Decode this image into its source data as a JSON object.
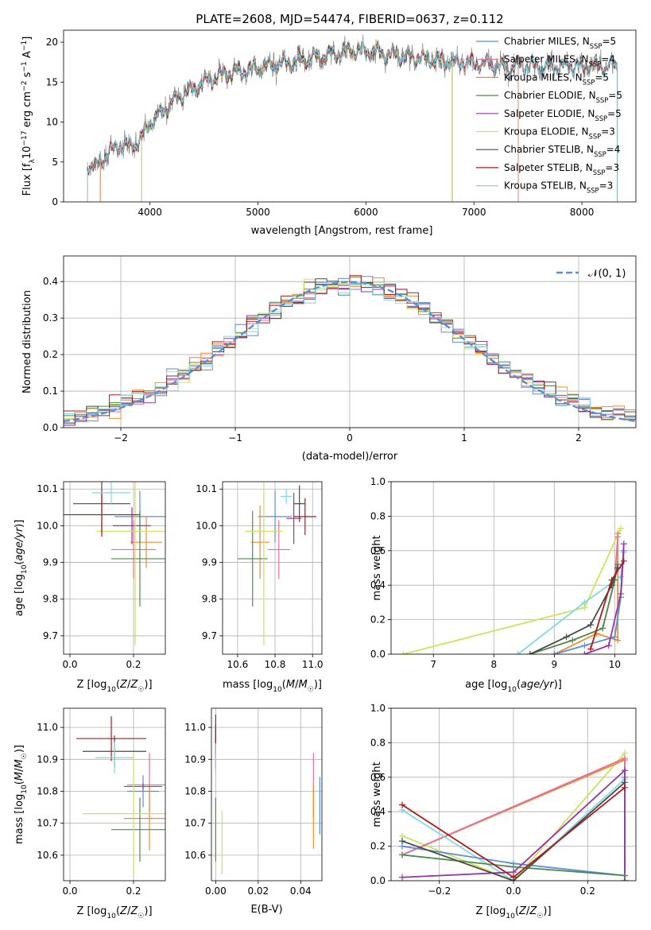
{
  "figure": {
    "title": "PLATE=2608, MJD=54474, FIBERID=0637, z=0.112"
  },
  "chart_data": [
    {
      "id": "spectrum",
      "type": "line",
      "title": "PLATE=2608, MJD=54474, FIBERID=0637, z=0.112",
      "xlabel": "wavelength [Angstrom, rest frame]",
      "ylabel": "Flux [f_λ10^-17 erg cm^-2 s^-1 A^-1]",
      "xlim": [
        3200,
        8500
      ],
      "ylim": [
        0,
        21.5
      ],
      "xticks": [
        "4000",
        "5000",
        "6000",
        "7000",
        "8000"
      ],
      "yticks": [
        "0",
        "5",
        "10",
        "15",
        "20"
      ],
      "grid": false,
      "legend_position": "right",
      "legend": [
        {
          "label": "Chabrier MILES, N",
          "sub": "SSP",
          "suffix": "=5",
          "color": "#5b8ed6"
        },
        {
          "label": "Salpeter MILES, N",
          "sub": "SSP",
          "suffix": "=4",
          "color": "#e56f9f"
        },
        {
          "label": "Kroupa MILES, N",
          "sub": "SSP",
          "suffix": "=5",
          "color": "#f08c2e"
        },
        {
          "label": "Chabrier ELODIE, N",
          "sub": "SSP",
          "suffix": "=5",
          "color": "#4e8a4e"
        },
        {
          "label": "Salpeter ELODIE, N",
          "sub": "SSP",
          "suffix": "=5",
          "color": "#9933aa"
        },
        {
          "label": "Kroupa ELODIE, N",
          "sub": "SSP",
          "suffix": "=3",
          "color": "#cce35a"
        },
        {
          "label": "Chabrier STELIB, N",
          "sub": "SSP",
          "suffix": "=4",
          "color": "#4a4a4a"
        },
        {
          "label": "Salpeter STELIB, N",
          "sub": "SSP",
          "suffix": "=3",
          "color": "#b01818"
        },
        {
          "label": "Kroupa STELIB, N",
          "sub": "SSP",
          "suffix": "=3",
          "color": "#7fd9e6"
        }
      ],
      "continuum_x": [
        3420,
        3500,
        3600,
        3700,
        3800,
        3900,
        4000,
        4100,
        4200,
        4300,
        4400,
        4500,
        4700,
        4900,
        5100,
        5300,
        5500,
        5700,
        5900,
        6100,
        6300,
        6500,
        6700,
        6900,
        7100,
        7300,
        7400
      ],
      "continuum_y": [
        4.8,
        4.2,
        6.0,
        7.0,
        7.0,
        7.5,
        10.0,
        11.0,
        12.5,
        13.5,
        14.0,
        15.0,
        16.0,
        16.5,
        17.0,
        17.5,
        18.0,
        18.5,
        19.0,
        18.7,
        18.3,
        18.0,
        17.7,
        17.5,
        17.3,
        16.8,
        17.0
      ],
      "series_range": [
        {
          "name": "Chabrier MILES, N_SSP=5",
          "x_start": 3540,
          "x_end": 7410
        },
        {
          "name": "Salpeter MILES, N_SSP=4",
          "x_start": 3540,
          "x_end": 7410
        },
        {
          "name": "Kroupa MILES, N_SSP=5",
          "x_start": 3540,
          "x_end": 7410
        },
        {
          "name": "Chabrier ELODIE, N_SSP=5",
          "x_start": 3920,
          "x_end": 6800
        },
        {
          "name": "Salpeter ELODIE, N_SSP=5",
          "x_start": 3920,
          "x_end": 6800
        },
        {
          "name": "Kroupa ELODIE, N_SSP=3",
          "x_start": 3920,
          "x_end": 6800
        },
        {
          "name": "Chabrier STELIB, N_SSP=4",
          "x_start": 3420,
          "x_end": 8330
        },
        {
          "name": "Salpeter STELIB, N_SSP=3",
          "x_start": 3420,
          "x_end": 8330
        },
        {
          "name": "Kroupa STELIB, N_SSP=3",
          "x_start": 3420,
          "x_end": 8330
        }
      ]
    },
    {
      "id": "residuals",
      "type": "line",
      "xlabel": "(data-model)/error",
      "ylabel": "Normed distribution",
      "xlim": [
        -2.5,
        2.5
      ],
      "ylim": [
        0,
        0.47
      ],
      "xticks": [
        "−2",
        "−1",
        "0",
        "1",
        "2"
      ],
      "yticks": [
        "0.0",
        "0.1",
        "0.2",
        "0.3",
        "0.4"
      ],
      "grid": true,
      "legend_position": "top-right",
      "legend": [
        {
          "label": "𝒩(0, 1)",
          "color": "#5b8ed6",
          "style": "dashed"
        }
      ],
      "bin_width": 0.1,
      "normal_curve": {
        "mean": 0,
        "sigma": 1
      }
    },
    {
      "id": "age_vs_Z",
      "type": "scatter",
      "xlabel": "Z [log10(Z/Z☉)]",
      "ylabel": "age  [log10(age/yr)]",
      "xlim": [
        -0.02,
        0.3
      ],
      "ylim": [
        9.65,
        10.12
      ],
      "xticks": [
        "0.0",
        "0.2"
      ],
      "yticks": [
        "9.7",
        "9.8",
        "9.9",
        "10.0",
        "10.1"
      ],
      "grid": true,
      "points": [
        {
          "x": 0.22,
          "xerr": 0.08,
          "y": 10.025,
          "yerr": 0.07,
          "color": "#5b8ed6"
        },
        {
          "x": 0.2,
          "xerr": 0.07,
          "y": 9.935,
          "yerr": 0.08,
          "color": "#e56f9f"
        },
        {
          "x": 0.24,
          "xerr": 0.05,
          "y": 9.955,
          "yerr": 0.07,
          "color": "#f08c2e"
        },
        {
          "x": 0.22,
          "xerr": 0.09,
          "y": 9.91,
          "yerr": 0.13,
          "color": "#4e8a4e"
        },
        {
          "x": 0.195,
          "xerr": 0.06,
          "y": 10.0,
          "yerr": 0.05,
          "color": "#9933aa"
        },
        {
          "x": 0.205,
          "xerr": 0.12,
          "y": 9.985,
          "yerr": 0.31,
          "color": "#cce35a"
        },
        {
          "x": 0.1,
          "xerr": 0.09,
          "y": 10.06,
          "yerr": 0.08,
          "color": "#4a4a4a"
        },
        {
          "x": 0.1,
          "xerr": 0.12,
          "y": 10.03,
          "yerr": 0.06,
          "color": "#b01818"
        },
        {
          "x": 0.13,
          "xerr": 0.06,
          "y": 10.09,
          "yerr": 0.03,
          "color": "#7fd9e6"
        }
      ]
    },
    {
      "id": "age_vs_mass",
      "type": "scatter",
      "xlabel": "mass [log10(M/M☉)]",
      "ylabel": "",
      "xlim": [
        10.52,
        11.05
      ],
      "ylim": [
        9.65,
        10.12
      ],
      "xticks": [
        "10.6",
        "10.8",
        "11.0"
      ],
      "yticks": [
        "9.7",
        "9.8",
        "9.9",
        "10.0",
        "10.1"
      ],
      "grid": true,
      "points": [
        {
          "x": 10.8,
          "xerr": 0.09,
          "y": 10.025,
          "yerr": 0.07,
          "color": "#5b8ed6"
        },
        {
          "x": 10.82,
          "xerr": 0.06,
          "y": 9.935,
          "yerr": 0.08,
          "color": "#e56f9f"
        },
        {
          "x": 10.72,
          "xerr": 0.05,
          "y": 9.955,
          "yerr": 0.1,
          "color": "#f08c2e"
        },
        {
          "x": 10.68,
          "xerr": 0.08,
          "y": 9.91,
          "yerr": 0.13,
          "color": "#4e8a4e"
        },
        {
          "x": 10.9,
          "xerr": 0.04,
          "y": 10.02,
          "yerr": 0.07,
          "color": "#9933aa"
        },
        {
          "x": 10.74,
          "xerr": 0.1,
          "y": 9.985,
          "yerr": 0.31,
          "color": "#cce35a"
        },
        {
          "x": 10.93,
          "xerr": 0.03,
          "y": 10.06,
          "yerr": 0.05,
          "color": "#4a4a4a"
        },
        {
          "x": 10.96,
          "xerr": 0.06,
          "y": 10.025,
          "yerr": 0.05,
          "color": "#b01818"
        },
        {
          "x": 10.86,
          "xerr": 0.03,
          "y": 10.08,
          "yerr": 0.02,
          "color": "#7fd9e6"
        }
      ]
    },
    {
      "id": "mass_weight_vs_age",
      "type": "line",
      "xlabel": "age  [log10(age/yr)]",
      "ylabel": "mass weight",
      "xlim": [
        6.3,
        10.35
      ],
      "ylim": [
        0,
        1.0
      ],
      "xticks": [
        "7",
        "8",
        "9",
        "10"
      ],
      "yticks": [
        "0.0",
        "0.2",
        "0.4",
        "0.6",
        "0.8",
        "1.0"
      ],
      "grid": true,
      "series": [
        {
          "color": "#cce35a",
          "x": [
            6.5,
            9.5,
            10.1
          ],
          "y": [
            0.0,
            0.27,
            0.73
          ]
        },
        {
          "color": "#f08c2e",
          "x": [
            9.0,
            9.7,
            10.05,
            10.05
          ],
          "y": [
            0.0,
            0.12,
            0.08,
            0.7
          ]
        },
        {
          "color": "#e56f9f",
          "x": [
            9.8,
            10.0,
            10.05
          ],
          "y": [
            0.15,
            0.43,
            0.68
          ]
        },
        {
          "color": "#7fd9e6",
          "x": [
            8.4,
            9.5,
            10.1,
            10.15
          ],
          "y": [
            0.0,
            0.3,
            0.45,
            0.59
          ]
        },
        {
          "color": "#5b8ed6",
          "x": [
            9.0,
            9.5,
            10.0,
            10.1,
            10.15
          ],
          "y": [
            0.0,
            0.05,
            0.1,
            0.33,
            0.6
          ]
        },
        {
          "color": "#9933aa",
          "x": [
            9.5,
            9.9,
            10.1,
            10.15
          ],
          "y": [
            0.0,
            0.05,
            0.35,
            0.64
          ]
        },
        {
          "color": "#4e8a4e",
          "x": [
            8.6,
            9.3,
            9.8,
            10.0,
            10.05
          ],
          "y": [
            0.0,
            0.08,
            0.15,
            0.43,
            0.52
          ]
        },
        {
          "color": "#4a4a4a",
          "x": [
            8.6,
            9.2,
            9.6,
            9.95,
            10.05
          ],
          "y": [
            0.0,
            0.1,
            0.17,
            0.4,
            0.5
          ]
        },
        {
          "color": "#b01818",
          "x": [
            9.6,
            9.95,
            10.15
          ],
          "y": [
            0.03,
            0.43,
            0.54
          ]
        }
      ]
    },
    {
      "id": "mass_vs_Z",
      "type": "scatter",
      "xlabel": "Z [log10(Z/Z☉)]",
      "ylabel": "mass [log10(M/M☉)]",
      "xlim": [
        -0.02,
        0.3
      ],
      "ylim": [
        10.52,
        11.06
      ],
      "xticks": [
        "0.0",
        "0.2"
      ],
      "yticks": [
        "10.6",
        "10.7",
        "10.8",
        "10.9",
        "11.0"
      ],
      "grid": true,
      "points": [
        {
          "x": 0.23,
          "xerr": 0.05,
          "y": 10.8,
          "yerr": 0.05,
          "color": "#5b8ed6"
        },
        {
          "x": 0.25,
          "xerr": 0.07,
          "y": 10.82,
          "yerr": 0.1,
          "color": "#e56f9f"
        },
        {
          "x": 0.25,
          "xerr": 0.08,
          "y": 10.715,
          "yerr": 0.1,
          "color": "#f08c2e"
        },
        {
          "x": 0.22,
          "xerr": 0.09,
          "y": 10.68,
          "yerr": 0.1,
          "color": "#4e8a4e"
        },
        {
          "x": 0.23,
          "xerr": 0.06,
          "y": 10.815,
          "yerr": 0.01,
          "color": "#9933aa"
        },
        {
          "x": 0.2,
          "xerr": 0.16,
          "y": 10.73,
          "yerr": 0.19,
          "color": "#cce35a"
        },
        {
          "x": 0.14,
          "xerr": 0.1,
          "y": 10.925,
          "yerr": 0.05,
          "color": "#4a4a4a"
        },
        {
          "x": 0.13,
          "xerr": 0.11,
          "y": 10.965,
          "yerr": 0.07,
          "color": "#b01818"
        },
        {
          "x": 0.14,
          "xerr": 0.06,
          "y": 10.905,
          "yerr": 0.05,
          "color": "#7fd9e6"
        }
      ]
    },
    {
      "id": "mass_vs_ebv",
      "type": "scatter",
      "xlabel": "E(B-V)",
      "ylabel": "",
      "xlim": [
        -0.002,
        0.05
      ],
      "ylim": [
        10.52,
        11.06
      ],
      "xticks": [
        "0.00",
        "0.02",
        "0.04"
      ],
      "yticks": [
        "10.6",
        "10.7",
        "10.8",
        "10.9",
        "11.0"
      ],
      "grid": true,
      "points": [
        {
          "x": 0.049,
          "y": 10.755,
          "yerr": 0.09,
          "color": "#5b8ed6"
        },
        {
          "x": 0.046,
          "y": 10.82,
          "yerr": 0.1,
          "color": "#e56f9f"
        },
        {
          "x": 0.046,
          "y": 10.72,
          "yerr": 0.1,
          "color": "#f08c2e"
        },
        {
          "x": 0.0,
          "y": 10.68,
          "yerr": 0.1,
          "color": "#4e8a4e"
        },
        {
          "x": 0.0,
          "y": 10.93,
          "yerr": 0.06,
          "color": "#9933aa"
        },
        {
          "x": 0.003,
          "y": 10.64,
          "yerr": 0.1,
          "color": "#cce35a"
        },
        {
          "x": 0.0,
          "y": 10.96,
          "yerr": 0.05,
          "color": "#4a4a4a"
        },
        {
          "x": 0.0,
          "y": 10.98,
          "yerr": 0.06,
          "color": "#b01818"
        },
        {
          "x": 0.0,
          "y": 10.9,
          "yerr": 0.05,
          "color": "#7fd9e6"
        }
      ]
    },
    {
      "id": "mass_weight_vs_Z",
      "type": "line",
      "xlabel": "Z [log10(Z/Z☉)]",
      "ylabel": "mass weight",
      "xlim": [
        -0.33,
        0.33
      ],
      "ylim": [
        0,
        1.0
      ],
      "xticks": [
        "−0.2",
        "0.0",
        "0.2"
      ],
      "yticks": [
        "0.0",
        "0.2",
        "0.4",
        "0.6",
        "0.8",
        "1.0"
      ],
      "grid": true,
      "series": [
        {
          "color": "#cce35a",
          "x": [
            -0.3,
            0.0,
            0.3
          ],
          "y": [
            0.26,
            0.0,
            0.74
          ]
        },
        {
          "color": "#f08c2e",
          "x": [
            -0.3,
            0.3,
            0.3
          ],
          "y": [
            0.15,
            0.7,
            0.0
          ]
        },
        {
          "color": "#e56f9f",
          "x": [
            -0.3,
            0.3,
            0.3
          ],
          "y": [
            0.15,
            0.71,
            0.0
          ]
        },
        {
          "color": "#7fd9e6",
          "x": [
            -0.3,
            0.0,
            0.3
          ],
          "y": [
            0.41,
            0.0,
            0.59
          ]
        },
        {
          "color": "#5b8ed6",
          "x": [
            -0.3,
            0.0,
            0.3,
            0.3
          ],
          "y": [
            0.2,
            0.1,
            0.03,
            0.6
          ]
        },
        {
          "color": "#9933aa",
          "x": [
            -0.3,
            0.0,
            0.3,
            0.3
          ],
          "y": [
            0.02,
            0.05,
            0.64,
            0.0
          ]
        },
        {
          "color": "#4e8a4e",
          "x": [
            -0.3,
            0.0,
            0.3
          ],
          "y": [
            0.15,
            0.08,
            0.03
          ]
        },
        {
          "color": "#4a4a4a",
          "x": [
            -0.3,
            0.0,
            0.3
          ],
          "y": [
            0.23,
            0.0,
            0.57
          ]
        },
        {
          "color": "#b01818",
          "x": [
            -0.3,
            0.0,
            0.3
          ],
          "y": [
            0.44,
            0.02,
            0.54
          ]
        }
      ]
    }
  ]
}
